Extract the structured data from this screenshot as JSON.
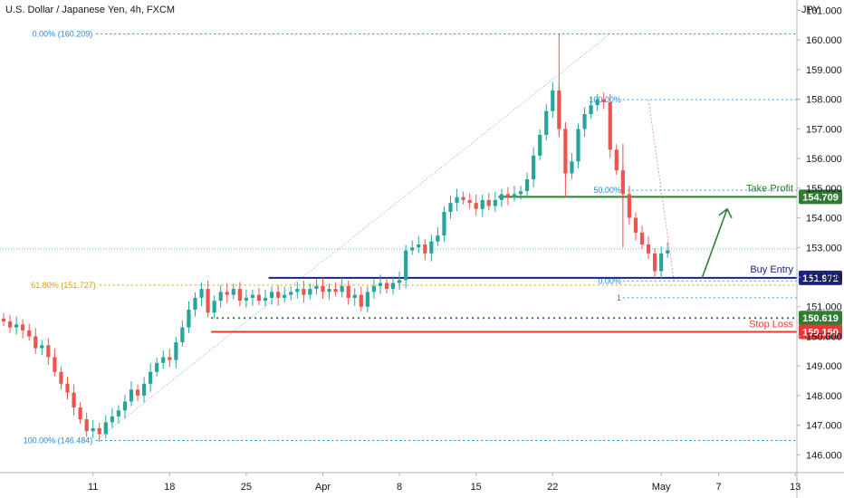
{
  "header": {
    "title": "U.S. Dollar / Japanese Yen, 4h, FXCM",
    "currency": "JPY"
  },
  "chart_data": {
    "type": "candlestick",
    "symbol": "USDJPY",
    "timeframe": "4h",
    "ylim": [
      145.4,
      161.35
    ],
    "y_ticks": [
      146.0,
      147.0,
      148.0,
      149.0,
      150.0,
      151.0,
      152.0,
      153.0,
      154.0,
      155.0,
      156.0,
      157.0,
      158.0,
      159.0,
      160.0,
      161.0
    ],
    "x_ticks": [
      {
        "label": "11",
        "index": 14
      },
      {
        "label": "18",
        "index": 26
      },
      {
        "label": "25",
        "index": 38
      },
      {
        "label": "Apr",
        "index": 50
      },
      {
        "label": "8",
        "index": 62
      },
      {
        "label": "15",
        "index": 74
      },
      {
        "label": "22",
        "index": 86
      },
      {
        "label": "May",
        "index": 103
      },
      {
        "label": "7",
        "index": 112
      },
      {
        "label": "13",
        "index": 124
      }
    ],
    "candles": [
      [
        150.6,
        150.5
      ],
      [
        150.5,
        150.3
      ],
      [
        150.3,
        150.4
      ],
      [
        150.4,
        150.2
      ],
      [
        150.2,
        150.0
      ],
      [
        150.0,
        149.6
      ],
      [
        149.6,
        149.7
      ],
      [
        149.7,
        149.3
      ],
      [
        149.3,
        148.8
      ],
      [
        148.8,
        148.4
      ],
      [
        148.4,
        148.1
      ],
      [
        148.1,
        147.6
      ],
      [
        147.6,
        147.2
      ],
      [
        147.2,
        146.8
      ],
      [
        146.8,
        146.9
      ],
      [
        146.9,
        146.7
      ],
      [
        146.7,
        147.1
      ],
      [
        147.1,
        147.3
      ],
      [
        147.3,
        147.5
      ],
      [
        147.5,
        147.8
      ],
      [
        147.8,
        148.2
      ],
      [
        148.2,
        148.0
      ],
      [
        148.0,
        148.4
      ],
      [
        148.4,
        148.8
      ],
      [
        148.8,
        149.1
      ],
      [
        149.1,
        149.3
      ],
      [
        149.3,
        149.2
      ],
      [
        149.2,
        149.8
      ],
      [
        149.8,
        150.3
      ],
      [
        150.3,
        150.9
      ],
      [
        150.9,
        151.3
      ],
      [
        151.3,
        151.6
      ],
      [
        151.6,
        150.8
      ],
      [
        150.8,
        151.2
      ],
      [
        151.2,
        151.5
      ],
      [
        151.5,
        151.4
      ],
      [
        151.4,
        151.6
      ],
      [
        151.6,
        151.2
      ],
      [
        151.2,
        151.3
      ],
      [
        151.3,
        151.4
      ],
      [
        151.4,
        151.2
      ],
      [
        151.2,
        151.3
      ],
      [
        151.3,
        151.5
      ],
      [
        151.5,
        151.3
      ],
      [
        151.3,
        151.4
      ],
      [
        151.4,
        151.5
      ],
      [
        151.5,
        151.6
      ],
      [
        151.6,
        151.4
      ],
      [
        151.4,
        151.6
      ],
      [
        151.6,
        151.7
      ],
      [
        151.7,
        151.5
      ],
      [
        151.5,
        151.6
      ],
      [
        151.6,
        151.5
      ],
      [
        151.5,
        151.7
      ],
      [
        151.7,
        151.3
      ],
      [
        151.3,
        151.4
      ],
      [
        151.4,
        151.0
      ],
      [
        151.0,
        151.5
      ],
      [
        151.5,
        151.7
      ],
      [
        151.7,
        151.8
      ],
      [
        151.8,
        151.6
      ],
      [
        151.6,
        151.8
      ],
      [
        151.8,
        151.9
      ],
      [
        151.9,
        152.9
      ],
      [
        152.9,
        153.0
      ],
      [
        153.0,
        153.1
      ],
      [
        153.1,
        152.8
      ],
      [
        152.8,
        153.2
      ],
      [
        153.2,
        153.4
      ],
      [
        153.4,
        154.2
      ],
      [
        154.2,
        154.5
      ],
      [
        154.5,
        154.7
      ],
      [
        154.7,
        154.6
      ],
      [
        154.6,
        154.5
      ],
      [
        154.5,
        154.3
      ],
      [
        154.3,
        154.6
      ],
      [
        154.6,
        154.4
      ],
      [
        154.4,
        154.6
      ],
      [
        154.6,
        154.8
      ],
      [
        154.8,
        154.7
      ],
      [
        154.7,
        154.8
      ],
      [
        154.8,
        154.9
      ],
      [
        154.9,
        155.3
      ],
      [
        155.3,
        156.1
      ],
      [
        156.1,
        156.8
      ],
      [
        156.8,
        157.6
      ],
      [
        157.6,
        158.3
      ],
      [
        158.3,
        157.0
      ],
      [
        157.0,
        155.5
      ],
      [
        155.5,
        155.9
      ],
      [
        155.9,
        157.0
      ],
      [
        157.0,
        157.5
      ],
      [
        157.5,
        157.8
      ],
      [
        157.8,
        158.0
      ],
      [
        158.0,
        157.9
      ],
      [
        157.9,
        156.3
      ],
      [
        156.3,
        155.6
      ],
      [
        155.6,
        154.8
      ],
      [
        154.8,
        154.0
      ],
      [
        154.0,
        153.5
      ],
      [
        153.5,
        153.1
      ],
      [
        153.1,
        152.8
      ],
      [
        152.8,
        152.2
      ],
      [
        152.2,
        152.8
      ],
      [
        152.8,
        152.9
      ]
    ],
    "fib_retracements": [
      {
        "name": "large",
        "levels": [
          {
            "label": "0.00% (160.209)",
            "value": 160.209
          },
          {
            "label": "61.80% (151.727)",
            "value": 151.727
          },
          {
            "label": "100.00% (146.484)",
            "value": 146.484
          }
        ]
      },
      {
        "name": "small",
        "levels": [
          {
            "label": "100.00%",
            "value": 157.99
          },
          {
            "label": "50.00%",
            "value": 154.93
          },
          {
            "label": "0.00%",
            "value": 151.87
          },
          {
            "label": "1",
            "value": 151.3
          }
        ]
      }
    ],
    "key_levels": [
      {
        "label": "Take Profit",
        "value": 154.709,
        "price_label": "154.709",
        "color": "#2e7d32"
      },
      {
        "label": "Buy Entry",
        "value": 151.972,
        "price_label": "151.972",
        "color": "#1a237e"
      },
      {
        "label": "",
        "value": 150.619,
        "price_label": "150.619",
        "color": "#2e7d32"
      },
      {
        "label": "Stop Loss",
        "value": 150.15,
        "price_label": "150.150",
        "color": "#e53935"
      }
    ],
    "current_price": 152.95,
    "arrow": {
      "from_price": 151.95,
      "to_price": 154.3,
      "color": "#2e7d32"
    }
  },
  "colors": {
    "up": "#26a69a",
    "down": "#ef5350",
    "fib_large": "#1e88e5",
    "fib_618": "#d4a017",
    "grid": "#d1d4dc"
  }
}
